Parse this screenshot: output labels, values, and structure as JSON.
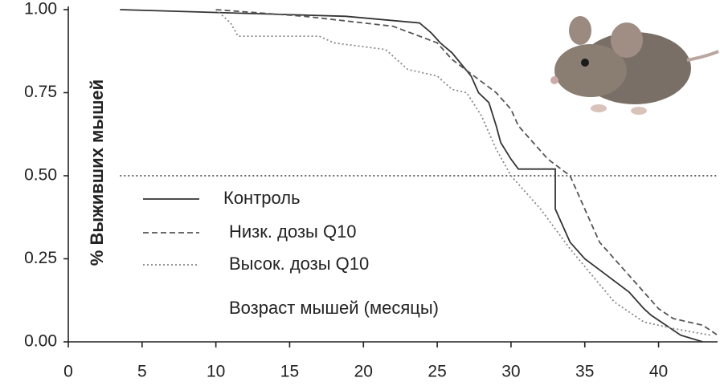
{
  "chart_data": {
    "type": "line",
    "x_label": "Возраст мышей (месяцы)",
    "y_label": "% Выживших мышей",
    "xlim": [
      0,
      44
    ],
    "ylim": [
      0,
      1
    ],
    "xticks": [
      0,
      5,
      10,
      15,
      20,
      25,
      30,
      35,
      40
    ],
    "yticks": [
      {
        "value": 0,
        "label": "0.00"
      },
      {
        "value": 0.25,
        "label": "0.25"
      },
      {
        "value": 0.5,
        "label": "0.50"
      },
      {
        "value": 0.75,
        "label": "0.75"
      },
      {
        "value": 1,
        "label": "1.00"
      }
    ],
    "reference_line": 0.5,
    "legend": "center-left",
    "series": [
      {
        "name": "Контроль",
        "color": "#333333",
        "dash": "solid",
        "x": [
          3.5,
          18.8,
          23.8,
          24.6,
          25.2,
          26.0,
          27.3,
          27.8,
          28.5,
          29.0,
          29.3,
          30.0,
          30.5,
          33.0,
          33.0,
          33.5,
          34.0,
          35.0,
          36.5,
          38.0,
          39.0,
          39.5,
          40.5,
          41.5,
          43.0
        ],
        "values": [
          1.0,
          0.98,
          0.96,
          0.93,
          0.9,
          0.87,
          0.8,
          0.75,
          0.72,
          0.65,
          0.6,
          0.55,
          0.52,
          0.52,
          0.4,
          0.35,
          0.3,
          0.25,
          0.2,
          0.15,
          0.1,
          0.08,
          0.05,
          0.02,
          0.0
        ]
      },
      {
        "name": "Низк. дозы Q10",
        "color": "#555555",
        "dash": "dashed",
        "x": [
          10,
          16,
          22,
          25,
          26,
          27.5,
          29,
          30,
          30.5,
          31.5,
          32.5,
          34,
          35,
          36,
          37,
          38,
          39,
          40,
          41,
          43,
          44
        ],
        "values": [
          1.0,
          0.98,
          0.95,
          0.9,
          0.85,
          0.8,
          0.75,
          0.7,
          0.65,
          0.6,
          0.55,
          0.5,
          0.4,
          0.3,
          0.25,
          0.2,
          0.15,
          0.1,
          0.07,
          0.05,
          0.02
        ]
      },
      {
        "name": "Высок. дозы Q10",
        "color": "#888888",
        "dash": "dotted",
        "x": [
          10,
          11,
          11.5,
          17,
          18,
          21.5,
          23,
          25,
          26,
          27,
          28,
          29,
          30,
          31,
          32,
          34,
          35.5,
          37,
          39,
          41,
          43.5
        ],
        "values": [
          1.0,
          0.96,
          0.92,
          0.92,
          0.9,
          0.88,
          0.82,
          0.8,
          0.76,
          0.75,
          0.68,
          0.58,
          0.5,
          0.45,
          0.4,
          0.28,
          0.2,
          0.12,
          0.06,
          0.04,
          0.02
        ]
      }
    ]
  }
}
